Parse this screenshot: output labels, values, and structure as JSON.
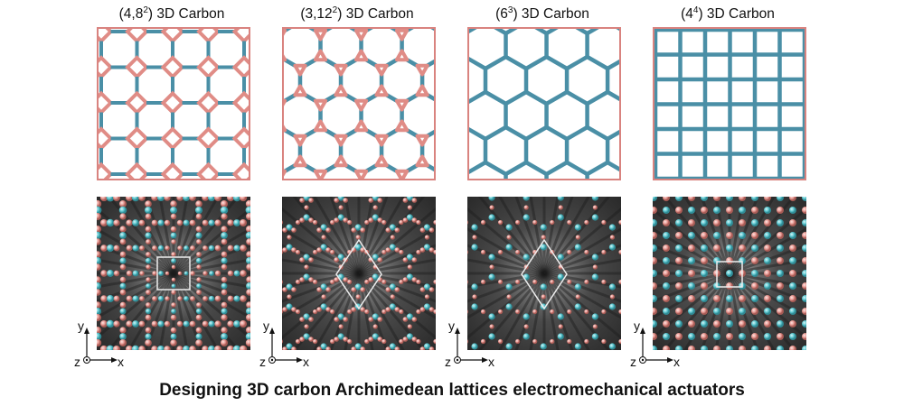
{
  "panels": [
    {
      "id": "482",
      "base": "(4,8",
      "sup": "2",
      "tail": ") 3D Carbon"
    },
    {
      "id": "3122",
      "base": "(3,12",
      "sup": "2",
      "tail": ") 3D Carbon"
    },
    {
      "id": "63",
      "base": "(6",
      "sup": "3",
      "tail": ") 3D Carbon"
    },
    {
      "id": "44",
      "base": "(4",
      "sup": "4",
      "tail": ") 3D Carbon"
    }
  ],
  "axes": {
    "y": "y",
    "x": "x",
    "z": "z"
  },
  "caption": "Designing 3D carbon Archimedean lattices electromechanical actuators",
  "colors": {
    "bond_teal": "#4a8fa6",
    "bond_pink": "#e08c86",
    "frame": "#d9837f",
    "atom_cyan": "#5fc8d0",
    "atom_pink": "#e89a94",
    "sim_bg": "#3a3a3a"
  }
}
